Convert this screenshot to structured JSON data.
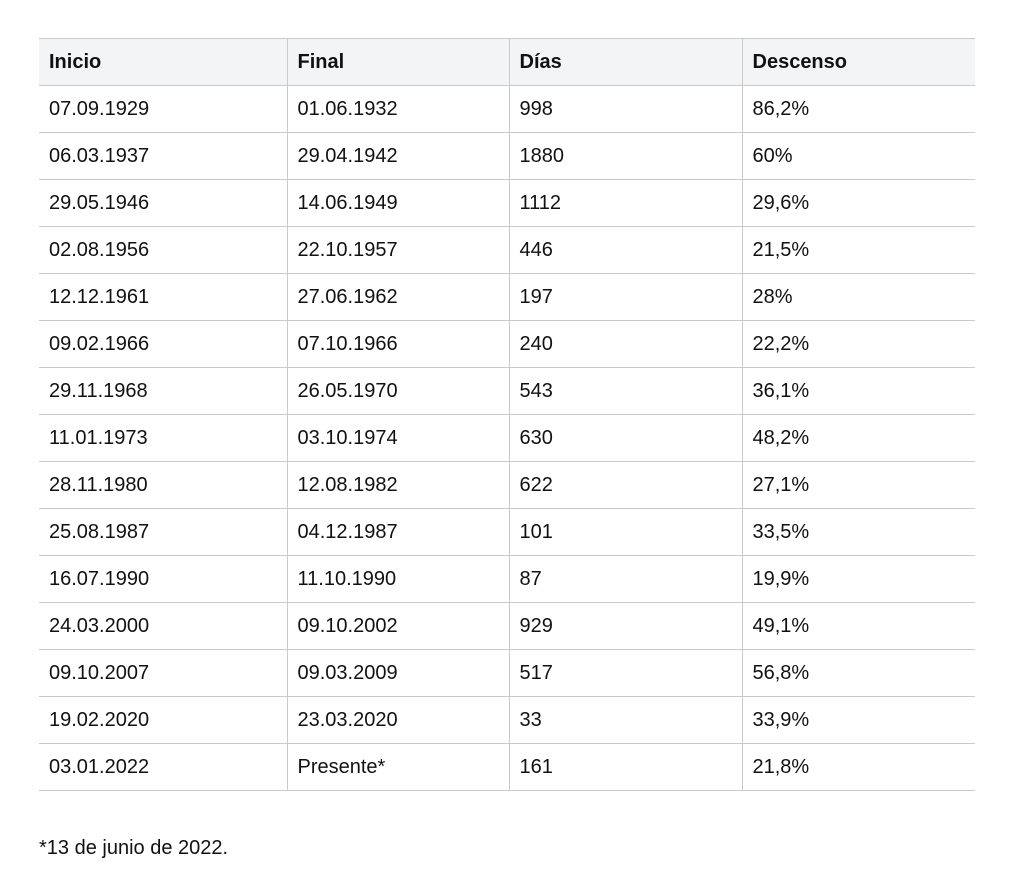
{
  "table": {
    "headers": [
      "Inicio",
      "Final",
      "Días",
      "Descenso"
    ],
    "rows": [
      [
        "07.09.1929",
        "01.06.1932",
        "998",
        "86,2%"
      ],
      [
        "06.03.1937",
        "29.04.1942",
        "1880",
        "60%"
      ],
      [
        "29.05.1946",
        "14.06.1949",
        "1112",
        "29,6%"
      ],
      [
        "02.08.1956",
        "22.10.1957",
        "446",
        "21,5%"
      ],
      [
        "12.12.1961",
        "27.06.1962",
        "197",
        "28%"
      ],
      [
        "09.02.1966",
        "07.10.1966",
        "240",
        "22,2%"
      ],
      [
        "29.11.1968",
        "26.05.1970",
        "543",
        "36,1%"
      ],
      [
        "11.01.1973",
        "03.10.1974",
        "630",
        "48,2%"
      ],
      [
        "28.11.1980",
        "12.08.1982",
        "622",
        "27,1%"
      ],
      [
        "25.08.1987",
        "04.12.1987",
        "101",
        "33,5%"
      ],
      [
        "16.07.1990",
        "11.10.1990",
        "87",
        "19,9%"
      ],
      [
        "24.03.2000",
        "09.10.2002",
        "929",
        "49,1%"
      ],
      [
        "09.10.2007",
        "09.03.2009",
        "517",
        "56,8%"
      ],
      [
        "19.02.2020",
        "23.03.2020",
        "33",
        "33,9%"
      ],
      [
        "03.01.2022",
        "Presente*",
        "161",
        "21,8%"
      ]
    ]
  },
  "footnote": "*13 de junio de 2022."
}
